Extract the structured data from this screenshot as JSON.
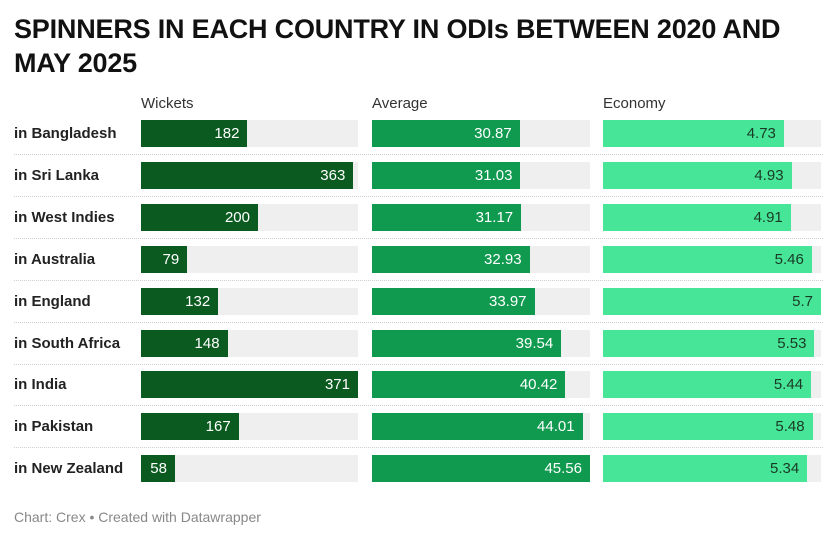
{
  "title": "SPINNERS IN EACH COUNTRY IN ODIs BETWEEN 2020 AND MAY 2025",
  "footer": "Chart: Crex • Created with Datawrapper",
  "colors": {
    "wickets": "#0b5a1f",
    "average": "#0f9a4f",
    "economy": "#47e597",
    "track": "#efefef"
  },
  "chart_data": {
    "type": "bar",
    "title": "SPINNERS IN EACH COUNTRY IN ODIs BETWEEN 2020 AND MAY 2025",
    "categories": [
      "in Bangladesh",
      "in Sri Lanka",
      "in West Indies",
      "in Australia",
      "in England",
      "in South Africa",
      "in India",
      "in Pakistan",
      "in New Zealand"
    ],
    "series": [
      {
        "name": "Wickets",
        "values": [
          182,
          363,
          200,
          79,
          132,
          148,
          371,
          167,
          58
        ],
        "labels": [
          "182",
          "363",
          "200",
          "79",
          "132",
          "148",
          "371",
          "167",
          "58"
        ],
        "max": 371
      },
      {
        "name": "Average",
        "values": [
          30.87,
          31.03,
          31.17,
          32.93,
          33.97,
          39.54,
          40.42,
          44.01,
          45.56
        ],
        "labels": [
          "30.87",
          "31.03",
          "31.17",
          "32.93",
          "33.97",
          "39.54",
          "40.42",
          "44.01",
          "45.56"
        ],
        "max": 45.56
      },
      {
        "name": "Economy",
        "values": [
          4.73,
          4.93,
          4.91,
          5.46,
          5.7,
          5.53,
          5.44,
          5.48,
          5.34
        ],
        "labels": [
          "4.73",
          "4.93",
          "4.91",
          "5.46",
          "5.7",
          "5.53",
          "5.44",
          "5.48",
          "5.34"
        ],
        "max": 5.7
      }
    ],
    "legend": "column headers",
    "grid": false
  }
}
